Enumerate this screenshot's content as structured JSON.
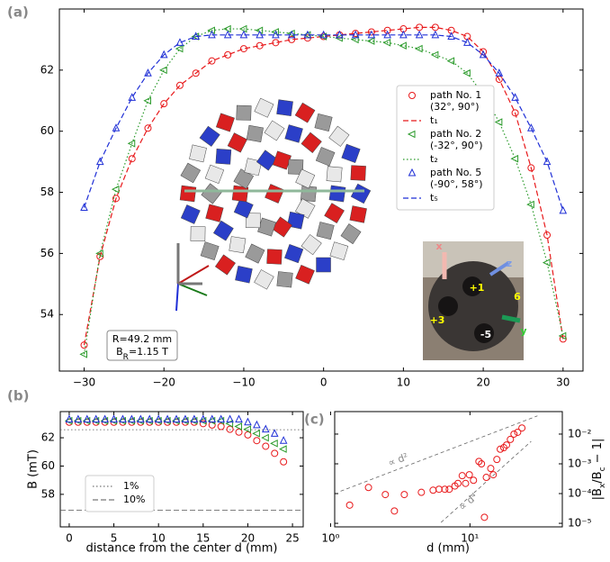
{
  "chart_data": [
    {
      "type": "line",
      "panel_label": "(a)",
      "xlim": [
        -33.1,
        32.5
      ],
      "ylim": [
        52.15,
        64
      ],
      "xticks": [
        {
          "value": -30,
          "label": "−30"
        },
        {
          "value": -20,
          "label": "−20"
        },
        {
          "value": -10,
          "label": "−10"
        },
        0,
        10,
        20,
        30
      ],
      "yticks": [
        54,
        56,
        58,
        60,
        62
      ],
      "x": [
        -30,
        -28,
        -26,
        -24,
        -22,
        -20,
        -18,
        -16,
        -14,
        -12,
        -10,
        -8,
        -6,
        -4,
        -2,
        0,
        2,
        4,
        6,
        8,
        10,
        12,
        14,
        16,
        18,
        20,
        22,
        24,
        26,
        28,
        30
      ],
      "series": [
        {
          "name": "path No. 1",
          "angles": "(32°, 90°)",
          "color": "#e8191b",
          "marker": "circle",
          "values": [
            53.0,
            55.9,
            57.8,
            59.1,
            60.1,
            60.9,
            61.5,
            61.9,
            62.3,
            62.5,
            62.7,
            62.8,
            62.9,
            63.0,
            63.05,
            63.1,
            63.15,
            63.2,
            63.25,
            63.3,
            63.35,
            63.4,
            63.4,
            63.3,
            63.1,
            62.6,
            61.7,
            60.6,
            58.8,
            56.6,
            53.2
          ]
        },
        {
          "name": "t₁",
          "color": "#e8191b",
          "linestyle": "dashed",
          "values": [
            53.0,
            55.9,
            57.8,
            59.1,
            60.1,
            60.9,
            61.5,
            61.9,
            62.3,
            62.5,
            62.7,
            62.8,
            62.9,
            63.0,
            63.05,
            63.1,
            63.15,
            63.2,
            63.25,
            63.3,
            63.35,
            63.4,
            63.4,
            63.3,
            63.1,
            62.6,
            61.7,
            60.6,
            58.8,
            56.6,
            53.2
          ]
        },
        {
          "name": "path No. 2",
          "angles": "(-32°, 90°)",
          "color": "#2a9a2a",
          "marker": "triangle-left",
          "values": [
            52.7,
            56.0,
            58.1,
            59.6,
            61.0,
            62.0,
            62.7,
            63.1,
            63.3,
            63.35,
            63.35,
            63.3,
            63.25,
            63.2,
            63.15,
            63.1,
            63.05,
            63.0,
            62.95,
            62.9,
            62.8,
            62.7,
            62.5,
            62.3,
            61.9,
            61.2,
            60.3,
            59.1,
            57.6,
            55.7,
            53.3
          ]
        },
        {
          "name": "t₂",
          "color": "#2a9a2a",
          "linestyle": "dotted",
          "values": [
            52.7,
            56.0,
            58.1,
            59.6,
            61.0,
            62.0,
            62.7,
            63.1,
            63.3,
            63.35,
            63.35,
            63.3,
            63.25,
            63.2,
            63.15,
            63.1,
            63.05,
            63.0,
            62.95,
            62.9,
            62.8,
            62.7,
            62.5,
            62.3,
            61.9,
            61.2,
            60.3,
            59.1,
            57.6,
            55.7,
            53.3
          ]
        },
        {
          "name": "path No. 5",
          "angles": "(-90°, 58°)",
          "color": "#1f2fd6",
          "marker": "triangle-up",
          "values": [
            57.5,
            59.0,
            60.1,
            61.1,
            61.9,
            62.5,
            62.9,
            63.1,
            63.15,
            63.15,
            63.15,
            63.15,
            63.15,
            63.15,
            63.15,
            63.15,
            63.15,
            63.15,
            63.15,
            63.15,
            63.15,
            63.15,
            63.15,
            63.1,
            62.9,
            62.5,
            61.9,
            61.1,
            60.1,
            59.0,
            57.4
          ]
        },
        {
          "name": "t₅",
          "color": "#1f2fd6",
          "linestyle": "dashed",
          "values": [
            57.5,
            59.0,
            60.1,
            61.1,
            61.9,
            62.5,
            62.9,
            63.1,
            63.15,
            63.15,
            63.15,
            63.15,
            63.15,
            63.15,
            63.15,
            63.15,
            63.15,
            63.15,
            63.15,
            63.15,
            63.15,
            63.15,
            63.15,
            63.1,
            62.9,
            62.5,
            61.9,
            61.1,
            60.1,
            59.0,
            57.4
          ]
        }
      ],
      "annotation": [
        [
          {
            "text": "R=49.2 mm"
          }
        ],
        [
          {
            "text": "B"
          },
          {
            "text": "R",
            "sub": true
          },
          {
            "text": "=1.15 T"
          }
        ]
      ],
      "photo_labels": [
        "x",
        "z",
        "+1",
        "+3",
        "-5",
        "6",
        "y"
      ]
    },
    {
      "type": "line",
      "panel_label": "(b)",
      "xlim": [
        -1,
        26.2
      ],
      "ylim": [
        55.7,
        63.85
      ],
      "xticks": [
        0,
        5,
        10,
        15,
        20,
        25
      ],
      "yticks": [
        58,
        60,
        62
      ],
      "xlabel": "distance from the center d (mm)",
      "ylabel": "B (mT)",
      "x": [
        0,
        1,
        2,
        3,
        4,
        5,
        6,
        7,
        8,
        9,
        10,
        11,
        12,
        13,
        14,
        15,
        16,
        17,
        18,
        19,
        20,
        21,
        22,
        23,
        24
      ],
      "series": [
        {
          "color": "#e8191b",
          "marker": "circle",
          "values": [
            63.1,
            63.1,
            63.1,
            63.1,
            63.1,
            63.1,
            63.1,
            63.1,
            63.1,
            63.1,
            63.1,
            63.1,
            63.1,
            63.1,
            63.1,
            63.0,
            62.9,
            62.8,
            62.6,
            62.4,
            62.2,
            61.8,
            61.4,
            60.9,
            60.3
          ]
        },
        {
          "color": "#2a9a2a",
          "marker": "triangle-left",
          "values": [
            63.2,
            63.2,
            63.2,
            63.2,
            63.2,
            63.2,
            63.2,
            63.2,
            63.2,
            63.2,
            63.2,
            63.2,
            63.2,
            63.2,
            63.2,
            63.2,
            63.2,
            63.2,
            63.0,
            62.8,
            62.6,
            62.3,
            62.0,
            61.6,
            61.2
          ]
        },
        {
          "color": "#1f2fd6",
          "marker": "triangle-up",
          "values": [
            63.3,
            63.3,
            63.3,
            63.3,
            63.3,
            63.3,
            63.3,
            63.3,
            63.3,
            63.3,
            63.3,
            63.3,
            63.3,
            63.3,
            63.3,
            63.3,
            63.3,
            63.3,
            63.3,
            63.3,
            63.1,
            62.9,
            62.6,
            62.3,
            61.8
          ]
        }
      ],
      "hlines": [
        {
          "name": "1%",
          "value": 62.57,
          "linestyle": "dotted"
        },
        {
          "name": "10%",
          "value": 56.88,
          "linestyle": "dashed"
        }
      ]
    },
    {
      "type": "scatter",
      "panel_label": "(c)",
      "xscale": "log",
      "yscale": "log",
      "y_axis_side": "right",
      "xlim": [
        1.07,
        46
      ],
      "ylim": [
        7.6e-06,
        0.057
      ],
      "xticks": [
        {
          "value": 1,
          "label": "10⁰"
        },
        {
          "value": 10,
          "label": "10¹"
        }
      ],
      "yticks": [
        {
          "value": 1e-05,
          "label": "10⁻⁵"
        },
        {
          "value": 0.0001,
          "label": "10⁻⁴"
        },
        {
          "value": 0.001,
          "label": "10⁻³"
        },
        {
          "value": 0.01,
          "label": "10⁻²"
        }
      ],
      "xlabel": "d (mm)",
      "ylabel": [
        {
          "text": "|B"
        },
        {
          "text": "x",
          "sub": true
        },
        {
          "text": "/B"
        },
        {
          "text": "c",
          "sub": true
        },
        {
          "text": " − 1|"
        }
      ],
      "series": [
        {
          "color": "#e8191b",
          "marker": "circle",
          "x": [
            1.37,
            1.87,
            2.47,
            2.87,
            3.38,
            4.48,
            5.44,
            6.0,
            6.6,
            7.1,
            7.8,
            8.2,
            8.8,
            9.3,
            9.9,
            10.6,
            11.6,
            12.1,
            12.7,
            13.1,
            14.1,
            14.7,
            15.6,
            16.5,
            17.5,
            18.3,
            19.5,
            20.7,
            22.0,
            23.6
          ],
          "values": [
            4.1e-05,
            0.00016,
            9.3e-05,
            2.6e-05,
            9.3e-05,
            0.00011,
            0.00013,
            0.00014,
            0.00014,
            0.00014,
            0.00018,
            0.00022,
            0.0004,
            0.00022,
            0.00043,
            0.00028,
            0.0012,
            0.001,
            1.6e-05,
            0.00035,
            0.0007,
            0.00043,
            0.0014,
            0.0031,
            0.0035,
            0.0043,
            0.0066,
            0.01,
            0.0115,
            0.016
          ]
        }
      ],
      "guides": [
        {
          "label": "∝ d²",
          "x": [
            1.18,
            30.5
          ],
          "values": [
            0.00012,
            0.041
          ]
        },
        {
          "label": "∝ d⁴",
          "x": [
            6.2,
            27.5
          ],
          "values": [
            1.07e-05,
            0.0057
          ]
        }
      ]
    }
  ]
}
